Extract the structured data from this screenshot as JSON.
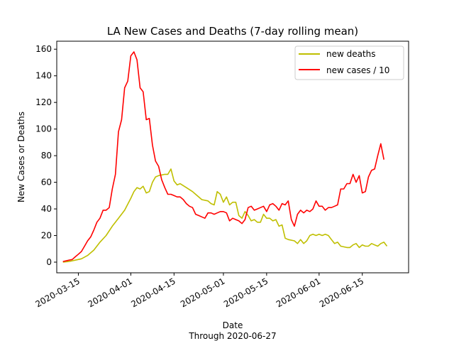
{
  "chart_data": {
    "type": "line",
    "title": "LA New Cases and Deaths (7-day rolling mean)",
    "xlabel": "Date",
    "xlabel_sub": "Through 2020-06-27",
    "ylabel": "New Cases or Deaths",
    "xlim": [
      "2020-03-08",
      "2020-06-30"
    ],
    "ylim": [
      -8,
      166
    ],
    "x_ticks": [
      "2020-03-15",
      "2020-04-01",
      "2020-04-15",
      "2020-05-01",
      "2020-05-15",
      "2020-06-01",
      "2020-06-15"
    ],
    "y_ticks": [
      0,
      20,
      40,
      60,
      80,
      100,
      120,
      140,
      160
    ],
    "grid": false,
    "legend_position": "top-right",
    "series": [
      {
        "name": "new deaths",
        "color": "#bfbf00",
        "points": [
          [
            "2020-03-10",
            0
          ],
          [
            "2020-03-12",
            0.5
          ],
          [
            "2020-03-14",
            1.5
          ],
          [
            "2020-03-16",
            2.5
          ],
          [
            "2020-03-18",
            5
          ],
          [
            "2020-03-20",
            9
          ],
          [
            "2020-03-22",
            15
          ],
          [
            "2020-03-24",
            20
          ],
          [
            "2020-03-26",
            27
          ],
          [
            "2020-03-28",
            33
          ],
          [
            "2020-03-30",
            39
          ],
          [
            "2020-04-01",
            48
          ],
          [
            "2020-04-02",
            53
          ],
          [
            "2020-04-03",
            56
          ],
          [
            "2020-04-04",
            55
          ],
          [
            "2020-04-05",
            57
          ],
          [
            "2020-04-06",
            52
          ],
          [
            "2020-04-07",
            53
          ],
          [
            "2020-04-08",
            60
          ],
          [
            "2020-04-09",
            64
          ],
          [
            "2020-04-10",
            65
          ],
          [
            "2020-04-12",
            66
          ],
          [
            "2020-04-13",
            66
          ],
          [
            "2020-04-14",
            70
          ],
          [
            "2020-04-15",
            61
          ],
          [
            "2020-04-16",
            58
          ],
          [
            "2020-04-17",
            59
          ],
          [
            "2020-04-19",
            56
          ],
          [
            "2020-04-21",
            53
          ],
          [
            "2020-04-22",
            51
          ],
          [
            "2020-04-24",
            47
          ],
          [
            "2020-04-26",
            46
          ],
          [
            "2020-04-27",
            44
          ],
          [
            "2020-04-28",
            43
          ],
          [
            "2020-04-29",
            53
          ],
          [
            "2020-04-30",
            51
          ],
          [
            "2020-05-01",
            45
          ],
          [
            "2020-05-02",
            49
          ],
          [
            "2020-05-03",
            43
          ],
          [
            "2020-05-04",
            45
          ],
          [
            "2020-05-05",
            45
          ],
          [
            "2020-05-06",
            35
          ],
          [
            "2020-05-07",
            33
          ],
          [
            "2020-05-08",
            38
          ],
          [
            "2020-05-09",
            35
          ],
          [
            "2020-05-10",
            31
          ],
          [
            "2020-05-11",
            32
          ],
          [
            "2020-05-12",
            30
          ],
          [
            "2020-05-13",
            30
          ],
          [
            "2020-05-14",
            36
          ],
          [
            "2020-05-15",
            33
          ],
          [
            "2020-05-16",
            33
          ],
          [
            "2020-05-17",
            31
          ],
          [
            "2020-05-18",
            32
          ],
          [
            "2020-05-19",
            27
          ],
          [
            "2020-05-20",
            28
          ],
          [
            "2020-05-21",
            18
          ],
          [
            "2020-05-22",
            17
          ],
          [
            "2020-05-24",
            16
          ],
          [
            "2020-05-25",
            14
          ],
          [
            "2020-05-26",
            17
          ],
          [
            "2020-05-27",
            14
          ],
          [
            "2020-05-28",
            16
          ],
          [
            "2020-05-29",
            20
          ],
          [
            "2020-05-30",
            21
          ],
          [
            "2020-05-31",
            20
          ],
          [
            "2020-06-01",
            21
          ],
          [
            "2020-06-02",
            20
          ],
          [
            "2020-06-03",
            21
          ],
          [
            "2020-06-04",
            20
          ],
          [
            "2020-06-05",
            17
          ],
          [
            "2020-06-06",
            14
          ],
          [
            "2020-06-07",
            15
          ],
          [
            "2020-06-08",
            12
          ],
          [
            "2020-06-10",
            11
          ],
          [
            "2020-06-11",
            11
          ],
          [
            "2020-06-12",
            13
          ],
          [
            "2020-06-13",
            14
          ],
          [
            "2020-06-14",
            11
          ],
          [
            "2020-06-15",
            13
          ],
          [
            "2020-06-16",
            12
          ],
          [
            "2020-06-17",
            12
          ],
          [
            "2020-06-18",
            14
          ],
          [
            "2020-06-19",
            13
          ],
          [
            "2020-06-20",
            12
          ],
          [
            "2020-06-21",
            14
          ],
          [
            "2020-06-22",
            15
          ],
          [
            "2020-06-23",
            12
          ]
        ]
      },
      {
        "name": "new cases / 10",
        "color": "#ff0000",
        "points": [
          [
            "2020-03-10",
            0.5
          ],
          [
            "2020-03-12",
            1.5
          ],
          [
            "2020-03-13",
            2
          ],
          [
            "2020-03-14",
            4
          ],
          [
            "2020-03-15",
            6
          ],
          [
            "2020-03-16",
            8
          ],
          [
            "2020-03-17",
            12
          ],
          [
            "2020-03-18",
            16
          ],
          [
            "2020-03-19",
            19
          ],
          [
            "2020-03-20",
            24
          ],
          [
            "2020-03-21",
            30
          ],
          [
            "2020-03-22",
            33
          ],
          [
            "2020-03-23",
            39
          ],
          [
            "2020-03-24",
            39
          ],
          [
            "2020-03-25",
            41
          ],
          [
            "2020-03-26",
            55
          ],
          [
            "2020-03-27",
            66
          ],
          [
            "2020-03-28",
            98
          ],
          [
            "2020-03-29",
            107
          ],
          [
            "2020-03-30",
            131
          ],
          [
            "2020-03-31",
            136
          ],
          [
            "2020-04-01",
            155
          ],
          [
            "2020-04-02",
            158
          ],
          [
            "2020-04-03",
            152
          ],
          [
            "2020-04-04",
            131
          ],
          [
            "2020-04-05",
            128
          ],
          [
            "2020-04-06",
            107
          ],
          [
            "2020-04-07",
            108
          ],
          [
            "2020-04-08",
            88
          ],
          [
            "2020-04-09",
            76
          ],
          [
            "2020-04-10",
            72
          ],
          [
            "2020-04-11",
            62
          ],
          [
            "2020-04-12",
            56
          ],
          [
            "2020-04-13",
            51
          ],
          [
            "2020-04-14",
            51
          ],
          [
            "2020-04-15",
            50
          ],
          [
            "2020-04-16",
            49
          ],
          [
            "2020-04-17",
            49
          ],
          [
            "2020-04-18",
            47
          ],
          [
            "2020-04-19",
            44
          ],
          [
            "2020-04-20",
            42
          ],
          [
            "2020-04-21",
            41
          ],
          [
            "2020-04-22",
            36
          ],
          [
            "2020-04-23",
            35
          ],
          [
            "2020-04-24",
            34
          ],
          [
            "2020-04-25",
            33
          ],
          [
            "2020-04-26",
            37
          ],
          [
            "2020-04-27",
            37
          ],
          [
            "2020-04-28",
            36
          ],
          [
            "2020-04-29",
            37
          ],
          [
            "2020-04-30",
            38
          ],
          [
            "2020-05-01",
            38
          ],
          [
            "2020-05-02",
            37
          ],
          [
            "2020-05-03",
            31
          ],
          [
            "2020-05-04",
            33
          ],
          [
            "2020-05-05",
            32
          ],
          [
            "2020-05-06",
            31
          ],
          [
            "2020-05-07",
            29
          ],
          [
            "2020-05-08",
            32
          ],
          [
            "2020-05-09",
            41
          ],
          [
            "2020-05-10",
            42
          ],
          [
            "2020-05-11",
            39
          ],
          [
            "2020-05-12",
            40
          ],
          [
            "2020-05-13",
            41
          ],
          [
            "2020-05-14",
            42
          ],
          [
            "2020-05-15",
            38
          ],
          [
            "2020-05-16",
            43
          ],
          [
            "2020-05-17",
            44
          ],
          [
            "2020-05-18",
            42
          ],
          [
            "2020-05-19",
            39
          ],
          [
            "2020-05-20",
            44
          ],
          [
            "2020-05-21",
            43
          ],
          [
            "2020-05-22",
            46
          ],
          [
            "2020-05-23",
            32
          ],
          [
            "2020-05-24",
            27
          ],
          [
            "2020-05-25",
            36
          ],
          [
            "2020-05-26",
            39
          ],
          [
            "2020-05-27",
            37
          ],
          [
            "2020-05-28",
            39
          ],
          [
            "2020-05-29",
            38
          ],
          [
            "2020-05-30",
            40
          ],
          [
            "2020-05-31",
            46
          ],
          [
            "2020-06-01",
            42
          ],
          [
            "2020-06-02",
            42
          ],
          [
            "2020-06-03",
            39
          ],
          [
            "2020-06-04",
            41
          ],
          [
            "2020-06-05",
            41
          ],
          [
            "2020-06-06",
            42
          ],
          [
            "2020-06-07",
            43
          ],
          [
            "2020-06-08",
            55
          ],
          [
            "2020-06-09",
            55
          ],
          [
            "2020-06-10",
            59
          ],
          [
            "2020-06-11",
            59
          ],
          [
            "2020-06-12",
            66
          ],
          [
            "2020-06-13",
            60
          ],
          [
            "2020-06-14",
            65
          ],
          [
            "2020-06-15",
            52
          ],
          [
            "2020-06-16",
            53
          ],
          [
            "2020-06-17",
            64
          ],
          [
            "2020-06-18",
            69
          ],
          [
            "2020-06-19",
            70
          ],
          [
            "2020-06-20",
            80
          ],
          [
            "2020-06-21",
            89
          ],
          [
            "2020-06-22",
            77
          ]
        ]
      }
    ]
  }
}
